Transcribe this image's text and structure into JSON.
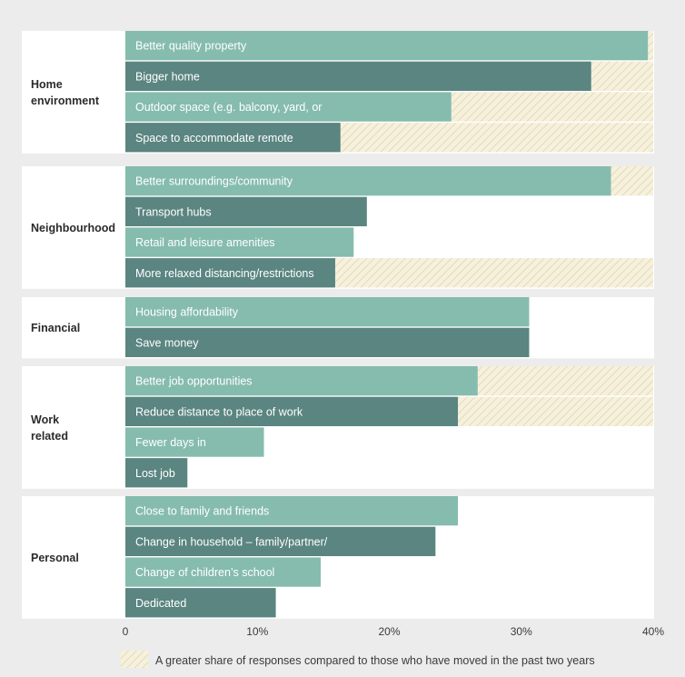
{
  "colors": {
    "background": "#ececec",
    "panel": "#ffffff",
    "bar_light": "#85bcad",
    "bar_dark": "#5a8580",
    "hatch_bg": "#f6f1dd",
    "hatch_line": "#e4dab8"
  },
  "chart_data": {
    "type": "bar",
    "orientation": "horizontal",
    "x_range": [
      0,
      40
    ],
    "x_unit": "%",
    "x_ticks": [
      "0",
      "10%",
      "20%",
      "30%",
      "40%"
    ],
    "grid": false,
    "groups": [
      {
        "name": "Home environment",
        "name_lines": [
          "Home",
          "environment"
        ],
        "bars": [
          {
            "label": "Better quality property",
            "value": 39.6,
            "hatch_to": 40,
            "shade": "light"
          },
          {
            "label": "Bigger home",
            "value": 35.3,
            "hatch_to": 40,
            "shade": "dark"
          },
          {
            "label": "Outdoor space (e.g. balcony, yard, or",
            "value": 24.7,
            "hatch_to": 40,
            "shade": "light"
          },
          {
            "label": "Space to accommodate remote",
            "value": 16.3,
            "hatch_to": 40,
            "shade": "dark"
          }
        ]
      },
      {
        "name": "Neighbourhood",
        "name_lines": [
          "Neighbourhood"
        ],
        "bars": [
          {
            "label": "Better surroundings/community",
            "value": 36.8,
            "hatch_to": 40,
            "shade": "light"
          },
          {
            "label": "Transport hubs",
            "value": 18.3,
            "hatch_to": null,
            "shade": "dark"
          },
          {
            "label": "Retail and leisure amenities",
            "value": 17.3,
            "hatch_to": null,
            "shade": "light"
          },
          {
            "label": "More relaxed distancing/restrictions",
            "value": 15.9,
            "hatch_to": 40,
            "shade": "dark"
          }
        ]
      },
      {
        "name": "Financial",
        "name_lines": [
          "Financial"
        ],
        "bars": [
          {
            "label": "Housing affordability",
            "value": 30.6,
            "hatch_to": null,
            "shade": "light"
          },
          {
            "label": "Save money",
            "value": 30.6,
            "hatch_to": null,
            "shade": "dark"
          }
        ]
      },
      {
        "name": "Work related",
        "name_lines": [
          "Work",
          "related"
        ],
        "bars": [
          {
            "label": "Better job opportunities",
            "value": 26.7,
            "hatch_to": 40,
            "shade": "light"
          },
          {
            "label": "Reduce distance to place of work",
            "value": 25.2,
            "hatch_to": 40,
            "shade": "dark"
          },
          {
            "label": "Fewer days in",
            "value": 10.5,
            "hatch_to": null,
            "shade": "light"
          },
          {
            "label": "Lost job",
            "value": 4.7,
            "hatch_to": null,
            "shade": "dark"
          }
        ]
      },
      {
        "name": "Personal",
        "name_lines": [
          "Personal"
        ],
        "bars": [
          {
            "label": "Close to family and friends",
            "value": 25.2,
            "hatch_to": null,
            "shade": "light"
          },
          {
            "label": "Change in household – family/partner/",
            "value": 23.5,
            "hatch_to": null,
            "shade": "dark"
          },
          {
            "label": "Change of children’s school",
            "value": 14.8,
            "hatch_to": null,
            "shade": "light"
          },
          {
            "label": "Dedicated",
            "value": 11.4,
            "hatch_to": null,
            "shade": "dark"
          }
        ]
      }
    ],
    "legend": {
      "label": "A greater share of responses compared to those who have moved in the past two years",
      "placement": "bottom"
    }
  }
}
